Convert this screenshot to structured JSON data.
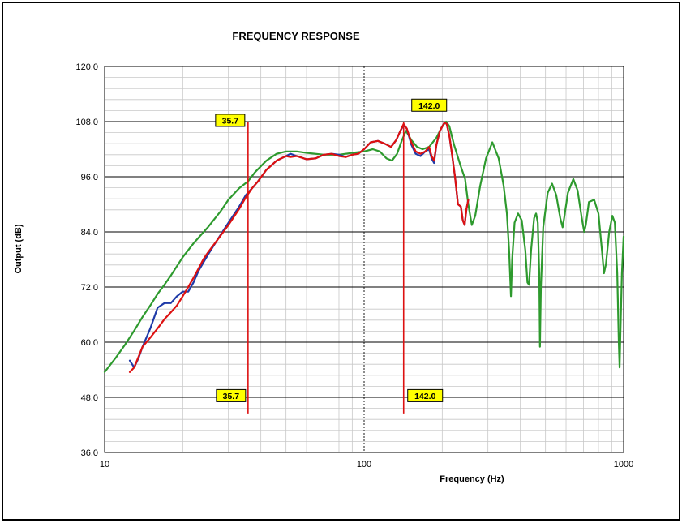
{
  "chart_data": {
    "type": "line",
    "title": "FREQUENCY RESPONSE",
    "xlabel": "Frequency (Hz)",
    "ylabel": "Output (dB)",
    "x_scale": "log",
    "xlim": [
      10,
      1000
    ],
    "ylim": [
      36,
      120
    ],
    "grid": true,
    "x_ticks": [
      "10",
      "100",
      "1000"
    ],
    "y_ticks": [
      "120.0",
      "108.0",
      "96.0",
      "84.0",
      "72.0",
      "60.0",
      "48.0",
      "36.0"
    ],
    "series": [
      {
        "color": "#2e9a2e",
        "points": [
          [
            10,
            53.5
          ],
          [
            11,
            56.5
          ],
          [
            12,
            59.5
          ],
          [
            13,
            62.5
          ],
          [
            14,
            65.5
          ],
          [
            15,
            68
          ],
          [
            16,
            70.5
          ],
          [
            17,
            72.5
          ],
          [
            18,
            74.5
          ],
          [
            20,
            78.5
          ],
          [
            22,
            81.5
          ],
          [
            25,
            85
          ],
          [
            28,
            88.5
          ],
          [
            30,
            91
          ],
          [
            33,
            93.5
          ],
          [
            35.7,
            95
          ],
          [
            38,
            97
          ],
          [
            42,
            99.5
          ],
          [
            46,
            101
          ],
          [
            50,
            101.5
          ],
          [
            55,
            101.5
          ],
          [
            60,
            101.2
          ],
          [
            70,
            100.8
          ],
          [
            80,
            100.8
          ],
          [
            90,
            101.2
          ],
          [
            100,
            101.5
          ],
          [
            108,
            102
          ],
          [
            115,
            101.5
          ],
          [
            122,
            100
          ],
          [
            128,
            99.5
          ],
          [
            134,
            101
          ],
          [
            140,
            104
          ],
          [
            145,
            106
          ],
          [
            152,
            104
          ],
          [
            160,
            102.5
          ],
          [
            168,
            102
          ],
          [
            178,
            102.5
          ],
          [
            190,
            104.5
          ],
          [
            200,
            107
          ],
          [
            207,
            108
          ],
          [
            213,
            107
          ],
          [
            222,
            103
          ],
          [
            235,
            98.5
          ],
          [
            245,
            95.5
          ],
          [
            252,
            90
          ],
          [
            260,
            85.5
          ],
          [
            268,
            87.5
          ],
          [
            280,
            94
          ],
          [
            295,
            100
          ],
          [
            312,
            103.5
          ],
          [
            330,
            100
          ],
          [
            345,
            94
          ],
          [
            355,
            88
          ],
          [
            362,
            80
          ],
          [
            368,
            70
          ],
          [
            372,
            78
          ],
          [
            380,
            86
          ],
          [
            392,
            88
          ],
          [
            405,
            86.5
          ],
          [
            418,
            80
          ],
          [
            426,
            73
          ],
          [
            432,
            72.5
          ],
          [
            440,
            80
          ],
          [
            452,
            87
          ],
          [
            460,
            88
          ],
          [
            467,
            86
          ],
          [
            473,
            75
          ],
          [
            476,
            59
          ],
          [
            480,
            72
          ],
          [
            490,
            85
          ],
          [
            510,
            92.5
          ],
          [
            530,
            94.5
          ],
          [
            550,
            92
          ],
          [
            570,
            87
          ],
          [
            582,
            85
          ],
          [
            590,
            87
          ],
          [
            610,
            92.5
          ],
          [
            640,
            95.5
          ],
          [
            665,
            93
          ],
          [
            690,
            87
          ],
          [
            705,
            84
          ],
          [
            715,
            85.5
          ],
          [
            735,
            90.5
          ],
          [
            770,
            91
          ],
          [
            800,
            88
          ],
          [
            825,
            80
          ],
          [
            840,
            75
          ],
          [
            855,
            77
          ],
          [
            880,
            84
          ],
          [
            905,
            87.5
          ],
          [
            925,
            86
          ],
          [
            945,
            75
          ],
          [
            958,
            60
          ],
          [
            965,
            54.5
          ],
          [
            972,
            62
          ],
          [
            985,
            75
          ],
          [
            1000,
            83
          ]
        ]
      },
      {
        "color": "#1f3aa8",
        "points": [
          [
            12.5,
            56
          ],
          [
            13,
            54.5
          ],
          [
            13.5,
            56.5
          ],
          [
            14,
            59
          ],
          [
            15,
            63
          ],
          [
            16,
            67.5
          ],
          [
            17,
            68.5
          ],
          [
            18,
            68.5
          ],
          [
            19,
            70
          ],
          [
            20,
            71
          ],
          [
            21,
            71
          ],
          [
            22,
            73
          ],
          [
            23,
            75.5
          ],
          [
            25,
            79
          ],
          [
            27,
            82
          ],
          [
            30,
            86
          ],
          [
            33,
            89.5
          ],
          [
            35,
            92
          ],
          [
            37,
            93.5
          ],
          [
            39,
            95
          ],
          [
            42,
            97.5
          ],
          [
            46,
            99.5
          ],
          [
            50,
            100.5
          ],
          [
            52,
            101
          ],
          [
            55,
            100.5
          ],
          [
            60,
            99.8
          ],
          [
            65,
            100
          ],
          [
            70,
            100.8
          ],
          [
            75,
            101
          ],
          [
            80,
            100.8
          ],
          [
            85,
            100.3
          ],
          [
            90,
            100.8
          ],
          [
            95,
            101
          ],
          [
            100,
            102
          ],
          [
            106,
            103.5
          ],
          [
            113,
            103.8
          ],
          [
            120,
            103.2
          ],
          [
            127,
            102.5
          ],
          [
            133,
            104
          ],
          [
            138,
            106
          ],
          [
            142,
            107.2
          ],
          [
            146,
            106.5
          ],
          [
            152,
            103
          ],
          [
            158,
            101
          ],
          [
            165,
            100.5
          ],
          [
            172,
            101.5
          ],
          [
            178,
            102
          ],
          [
            182,
            100
          ],
          [
            186,
            99
          ],
          [
            190,
            103
          ],
          [
            196,
            106
          ],
          [
            204,
            107.8
          ],
          [
            208,
            107.5
          ],
          [
            213,
            105
          ],
          [
            218,
            101
          ],
          [
            224,
            96
          ],
          [
            230,
            90
          ],
          [
            236,
            89.5
          ],
          [
            240,
            86.5
          ],
          [
            244,
            85.5
          ],
          [
            248,
            89
          ],
          [
            252,
            91
          ]
        ]
      },
      {
        "color": "#dd1111",
        "points": [
          [
            12.5,
            53.5
          ],
          [
            13,
            54.5
          ],
          [
            14,
            59
          ],
          [
            15,
            61
          ],
          [
            16,
            63
          ],
          [
            17,
            65
          ],
          [
            18,
            66.5
          ],
          [
            19,
            68
          ],
          [
            20,
            70
          ],
          [
            21,
            72
          ],
          [
            22,
            74
          ],
          [
            23,
            76
          ],
          [
            24,
            78
          ],
          [
            25,
            79.5
          ],
          [
            27,
            82
          ],
          [
            30,
            85.5
          ],
          [
            33,
            89
          ],
          [
            35,
            91.5
          ],
          [
            37,
            93.5
          ],
          [
            39,
            95
          ],
          [
            42,
            97.5
          ],
          [
            46,
            99.5
          ],
          [
            50,
            100.5
          ],
          [
            52,
            100.3
          ],
          [
            55,
            100.5
          ],
          [
            60,
            99.8
          ],
          [
            65,
            100
          ],
          [
            70,
            100.8
          ],
          [
            75,
            101
          ],
          [
            80,
            100.5
          ],
          [
            85,
            100.3
          ],
          [
            90,
            100.8
          ],
          [
            95,
            101
          ],
          [
            100,
            102
          ],
          [
            106,
            103.5
          ],
          [
            113,
            103.8
          ],
          [
            120,
            103.2
          ],
          [
            127,
            102.5
          ],
          [
            133,
            104
          ],
          [
            138,
            106
          ],
          [
            142,
            107.5
          ],
          [
            146,
            106.5
          ],
          [
            152,
            103.5
          ],
          [
            158,
            101.5
          ],
          [
            165,
            101
          ],
          [
            172,
            101.5
          ],
          [
            178,
            102.5
          ],
          [
            182,
            100.5
          ],
          [
            186,
            99.5
          ],
          [
            190,
            103
          ],
          [
            196,
            106
          ],
          [
            204,
            107.8
          ],
          [
            208,
            107.5
          ],
          [
            213,
            105
          ],
          [
            218,
            101
          ],
          [
            224,
            96
          ],
          [
            230,
            90
          ],
          [
            236,
            89.5
          ],
          [
            240,
            86.5
          ],
          [
            244,
            85.5
          ],
          [
            248,
            89
          ],
          [
            252,
            91
          ]
        ]
      }
    ],
    "markers": [
      {
        "x": 35.7,
        "label_top": "35.7",
        "label_bottom": "35.7",
        "color": "#dd1111",
        "label_bg": "#ffff00"
      },
      {
        "x": 142.0,
        "label_top": "142.0",
        "label_bottom": "142.0",
        "color": "#dd1111",
        "label_bg": "#ffff00"
      }
    ]
  }
}
